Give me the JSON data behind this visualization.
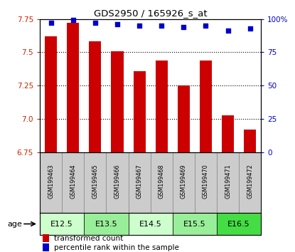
{
  "title": "GDS2950 / 165926_s_at",
  "samples": [
    "GSM199463",
    "GSM199464",
    "GSM199465",
    "GSM199466",
    "GSM199467",
    "GSM199468",
    "GSM199469",
    "GSM199470",
    "GSM199471",
    "GSM199472"
  ],
  "transformed_count": [
    7.62,
    7.72,
    7.58,
    7.51,
    7.36,
    7.44,
    7.25,
    7.44,
    7.03,
    6.92
  ],
  "percentile_rank": [
    97,
    99,
    97,
    96,
    95,
    95,
    94,
    95,
    91,
    93
  ],
  "ylim_left": [
    6.75,
    7.75
  ],
  "ylim_right": [
    0,
    100
  ],
  "yticks_left": [
    6.75,
    7.0,
    7.25,
    7.5,
    7.75
  ],
  "yticks_right": [
    0,
    25,
    50,
    75,
    100
  ],
  "ytick_labels_right": [
    "0",
    "25",
    "50",
    "75",
    "100%"
  ],
  "bar_color": "#cc0000",
  "dot_color": "#0000cc",
  "age_groups": [
    {
      "label": "E12.5",
      "start": 0,
      "end": 1,
      "color": "#ccffcc"
    },
    {
      "label": "E13.5",
      "start": 2,
      "end": 3,
      "color": "#99ee99"
    },
    {
      "label": "E14.5",
      "start": 4,
      "end": 5,
      "color": "#ccffcc"
    },
    {
      "label": "E15.5",
      "start": 6,
      "end": 7,
      "color": "#99ee99"
    },
    {
      "label": "E16.5",
      "start": 8,
      "end": 9,
      "color": "#44dd44"
    }
  ],
  "legend_bar_label": "transformed count",
  "legend_dot_label": "percentile rank within the sample",
  "age_label": "age",
  "background_color": "#ffffff",
  "tick_label_color_left": "#cc2200",
  "tick_label_color_right": "#0000cc",
  "grid_lines": [
    7.0,
    7.25,
    7.5
  ],
  "sample_bg_color": "#cccccc",
  "sample_border_color": "#888888"
}
